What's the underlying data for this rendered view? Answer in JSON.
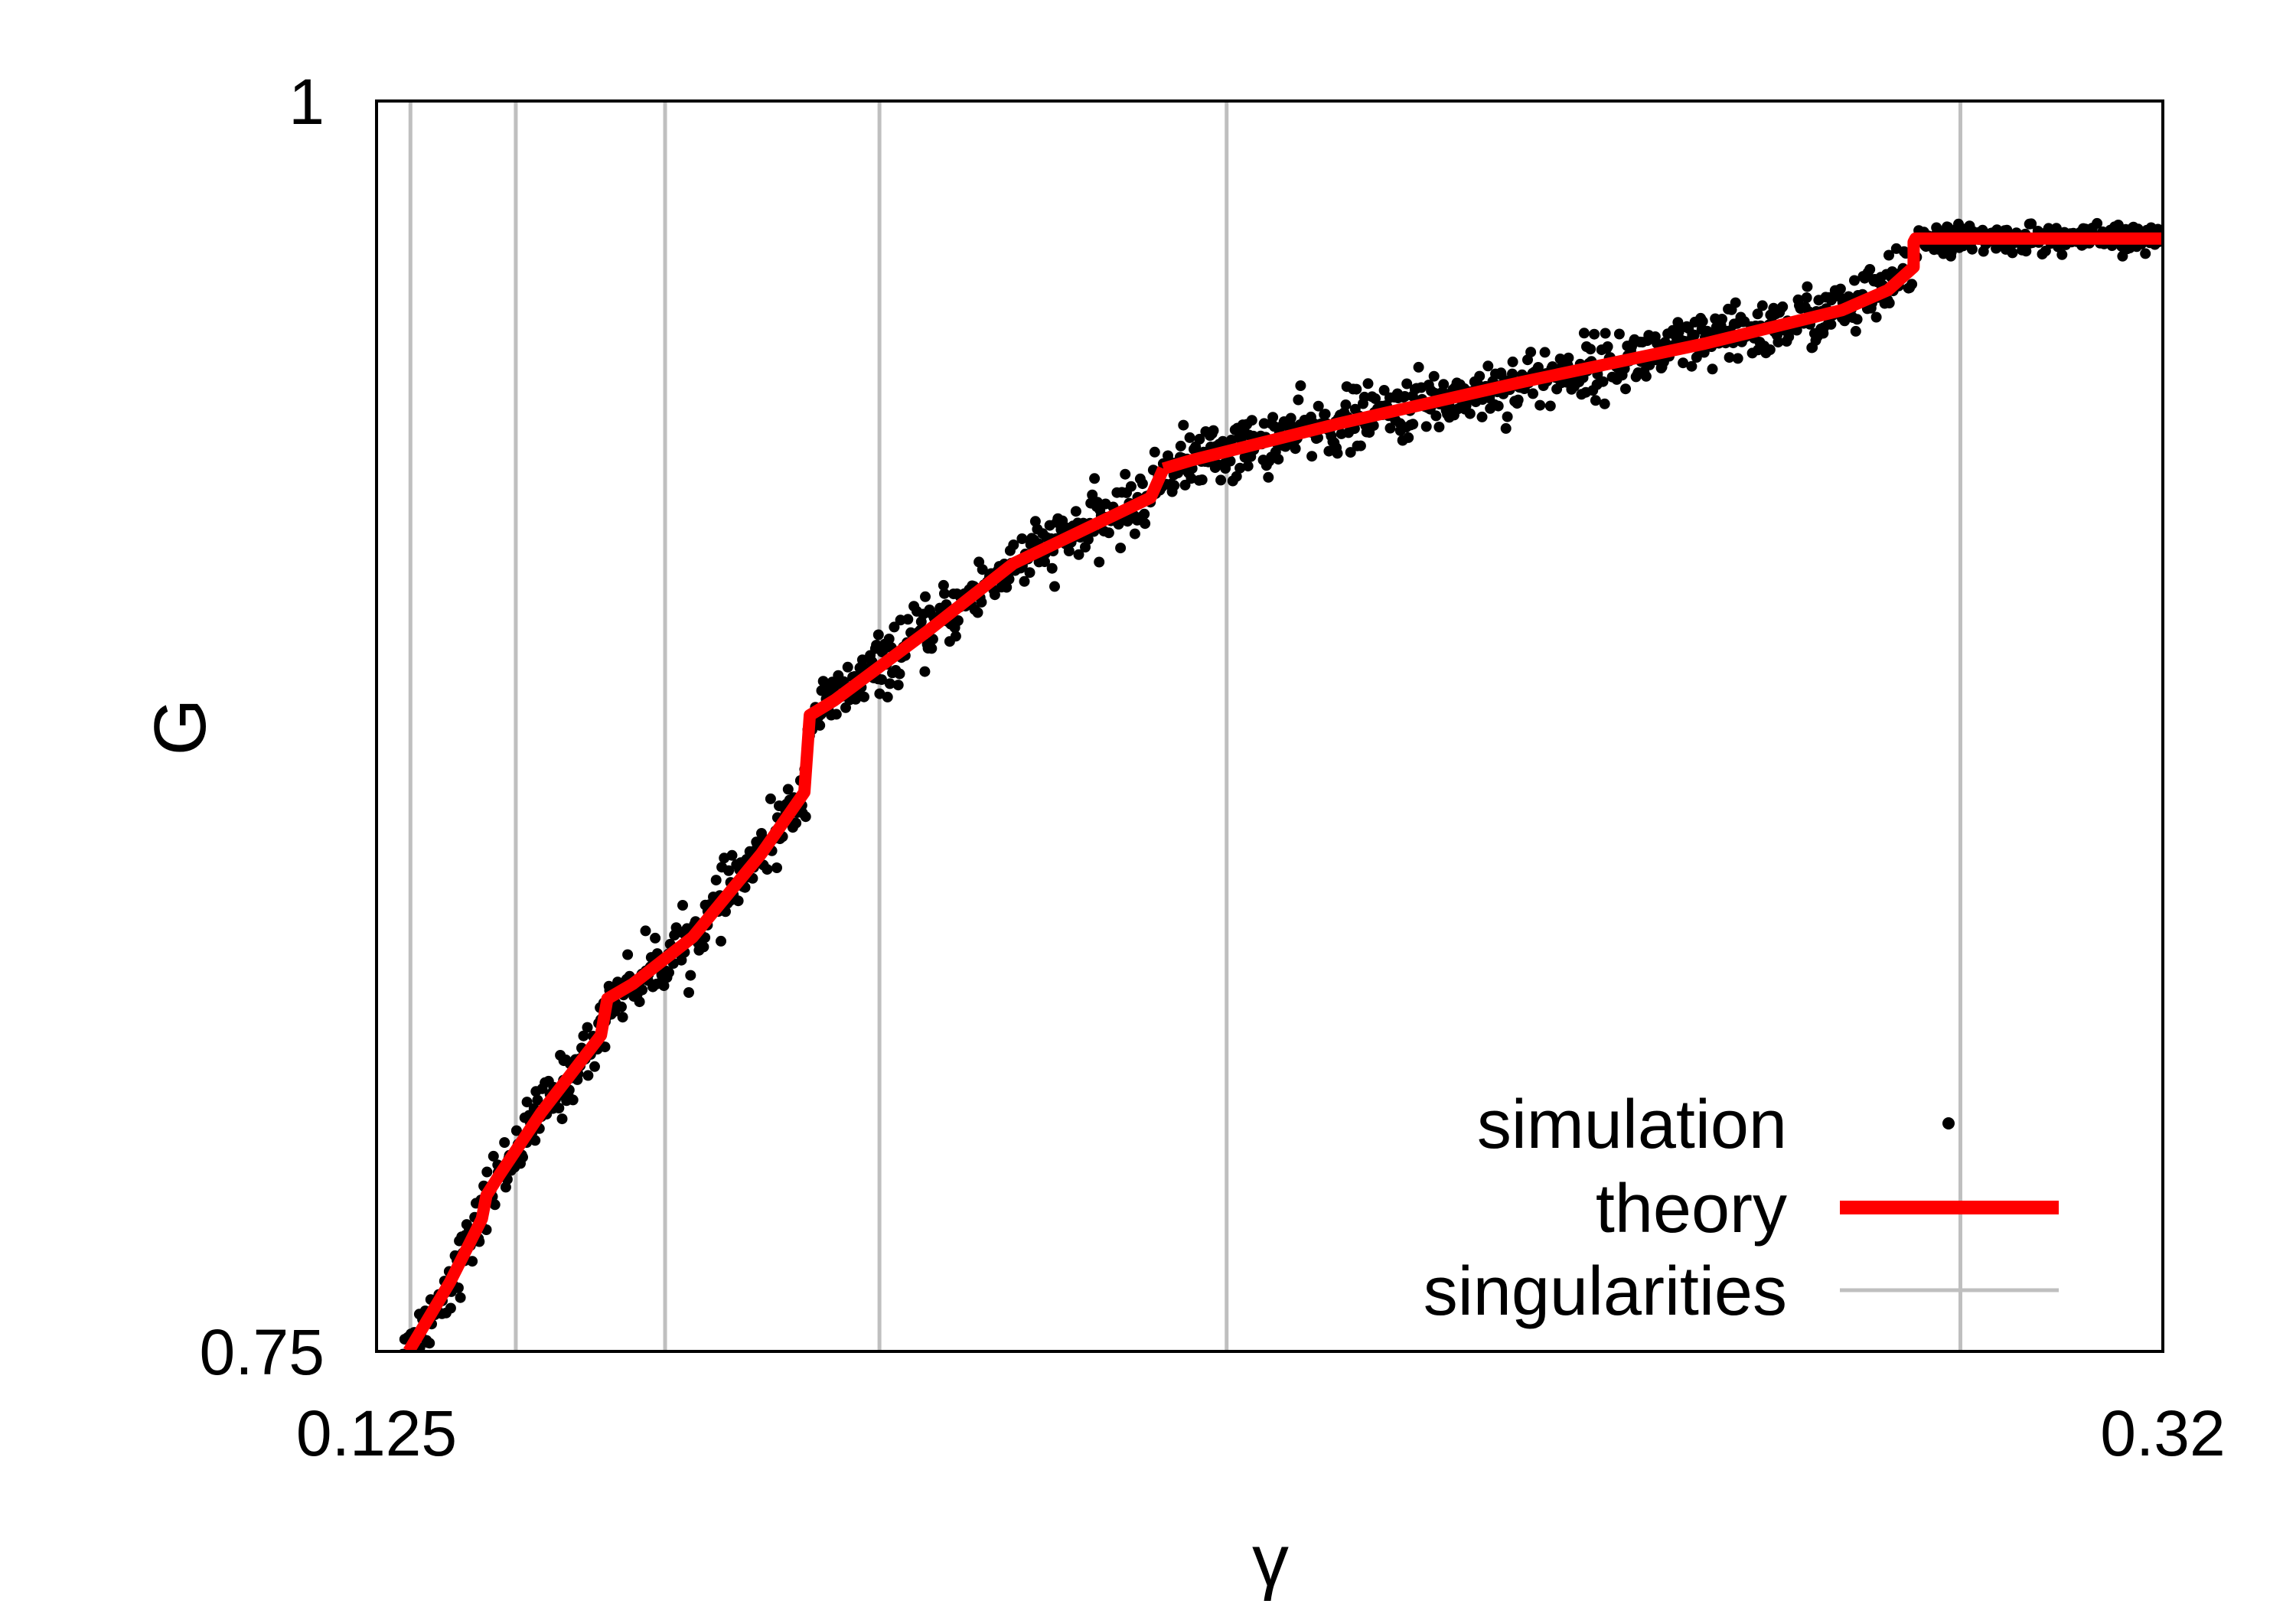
{
  "chart_data": {
    "type": "scatter",
    "title": "",
    "xlabel": "γ",
    "ylabel": "G",
    "xlim": [
      0.125,
      0.32
    ],
    "ylim": [
      0.75,
      1.0
    ],
    "x_ticks": [
      {
        "value": 0.125,
        "label": "0.125"
      },
      {
        "value": 0.32,
        "label": "0.32"
      }
    ],
    "y_ticks": [
      {
        "value": 1.0,
        "label": "1"
      },
      {
        "value": 0.75,
        "label": "0.75"
      }
    ],
    "grid": false,
    "legend_position": "bottom-right",
    "colors": {
      "simulation": "#000000",
      "theory": "#ff0000",
      "singularities": "#bfbfbf",
      "frame": "#000000"
    },
    "series": [
      {
        "name": "simulation",
        "kind": "points",
        "noise_sd": 0.003,
        "x_range": [
          0.127,
          0.32
        ]
      },
      {
        "name": "theory",
        "kind": "line",
        "segments": [
          [
            [
              0.1285,
              0.75
            ],
            [
              0.133,
              0.7638
            ],
            [
              0.1365,
              0.7765
            ],
            [
              0.137,
              0.7812
            ],
            [
              0.1385,
              0.7855
            ],
            [
              0.143,
              0.7978
            ],
            [
              0.1495,
              0.8132
            ],
            [
              0.1502,
              0.8205
            ],
            [
              0.153,
              0.8235
            ],
            [
              0.1595,
              0.8328
            ],
            [
              0.167,
              0.8495
            ],
            [
              0.1717,
              0.8618
            ],
            [
              0.1723,
              0.8772
            ],
            [
              0.175,
              0.8802
            ],
            [
              0.185,
              0.8938
            ],
            [
              0.1945,
              0.9075
            ],
            [
              0.2095,
              0.9207
            ],
            [
              0.2109,
              0.9265
            ]
          ],
          [
            [
              0.2109,
              0.9265
            ],
            [
              0.214,
              0.9282
            ],
            [
              0.23,
              0.9355
            ],
            [
              0.25,
              0.9438
            ],
            [
              0.27,
              0.9515
            ],
            [
              0.285,
              0.9582
            ],
            [
              0.29,
              0.9622
            ],
            [
              0.2928,
              0.9668
            ],
            [
              0.2928,
              0.9718
            ],
            [
              0.293,
              0.9725
            ],
            [
              0.32,
              0.9725
            ]
          ]
        ]
      },
      {
        "name": "singularities",
        "kind": "vline",
        "x": [
          0.1287,
          0.1402,
          0.1565,
          0.1799,
          0.2178,
          0.2979
        ]
      }
    ]
  }
}
